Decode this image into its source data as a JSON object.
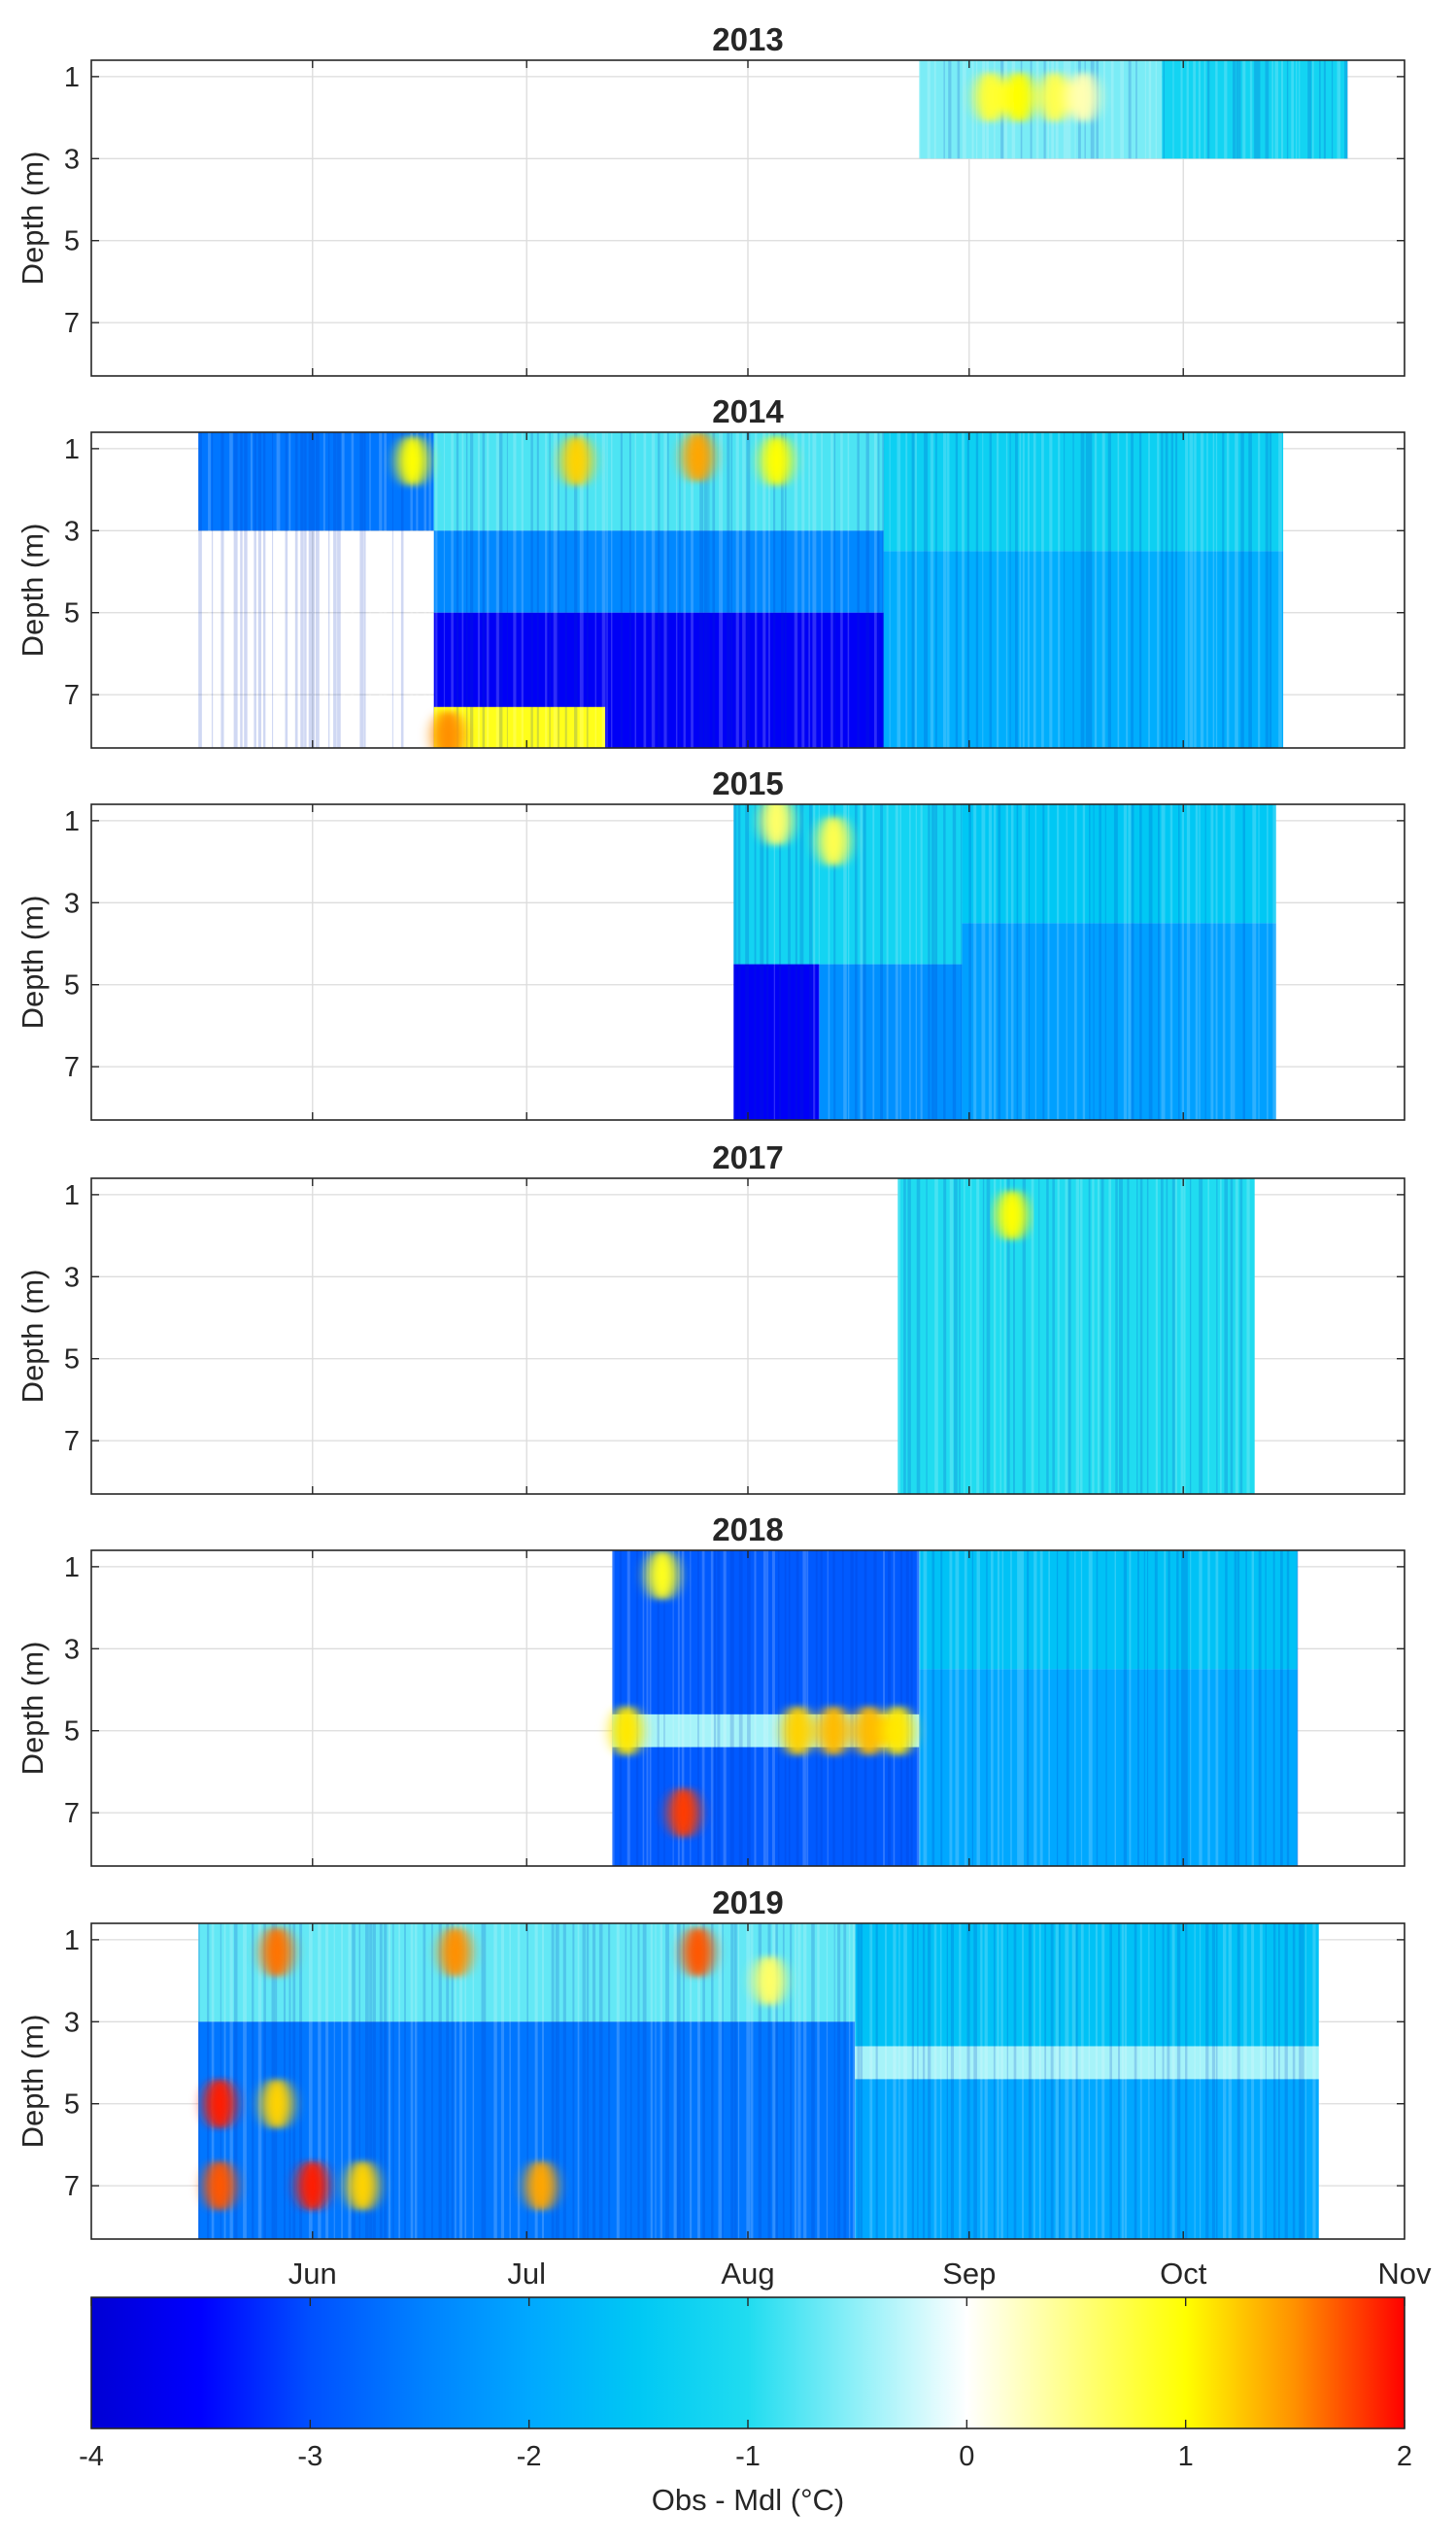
{
  "chart_data": {
    "type": "heatmap",
    "panel_titles": [
      "2013",
      "2014",
      "2015",
      "2017",
      "2018",
      "2019"
    ],
    "ylabel": "Depth (m)",
    "ylim": [
      8.3,
      0.6
    ],
    "yticks": [
      "1",
      "3",
      "5",
      "7"
    ],
    "xlim": [
      "2000-05-01",
      "2000-11-01"
    ],
    "xticks": [
      "Jun",
      "Jul",
      "Aug",
      "Sep",
      "Oct",
      "Nov"
    ],
    "grid": true,
    "colorbar": {
      "label": "Obs - Mdl (°C)",
      "range": [
        -4,
        2
      ],
      "ticks": [
        "-4",
        "-3",
        "-2",
        "-1",
        "0",
        "1",
        "2"
      ],
      "stops": [
        {
          "value": -4,
          "color": "#0000d4"
        },
        {
          "value": -3.5,
          "color": "#0000ff"
        },
        {
          "value": -3,
          "color": "#0050ff"
        },
        {
          "value": -2.5,
          "color": "#0080ff"
        },
        {
          "value": -2,
          "color": "#00a8ff"
        },
        {
          "value": -1.5,
          "color": "#00c8f4"
        },
        {
          "value": -1,
          "color": "#20dcf0"
        },
        {
          "value": -0.5,
          "color": "#90f0f8"
        },
        {
          "value": 0,
          "color": "#ffffff"
        },
        {
          "value": 0.5,
          "color": "#ffff80"
        },
        {
          "value": 1,
          "color": "#ffff00"
        },
        {
          "value": 1.5,
          "color": "#ff9000"
        },
        {
          "value": 2,
          "color": "#ff0000"
        }
      ]
    },
    "panels": [
      {
        "year": "2013",
        "start": "2000-08-25",
        "end": "2000-10-24",
        "depth_range": [
          0.6,
          3
        ],
        "regions": [
          {
            "from": "2000-08-25",
            "to": "2000-09-28",
            "d0": 0.6,
            "d1": 3,
            "value": -0.6
          },
          {
            "from": "2000-09-28",
            "to": "2000-10-24",
            "d0": 0.6,
            "d1": 3,
            "value": -1.2
          }
        ],
        "spots": [
          {
            "date": "2000-09-04",
            "depth": 1.5,
            "value": 0.8
          },
          {
            "date": "2000-09-08",
            "depth": 1.5,
            "value": 1.0
          },
          {
            "date": "2000-09-13",
            "depth": 1.5,
            "value": 0.7
          },
          {
            "date": "2000-09-17",
            "depth": 1.5,
            "value": 0.3
          }
        ]
      },
      {
        "year": "2014",
        "start": "2000-05-16",
        "end": "2000-10-15",
        "depth_range": [
          0.6,
          8.3
        ],
        "regions": [
          {
            "from": "2000-05-16",
            "to": "2000-06-18",
            "d0": 0.6,
            "d1": 3,
            "value": -2.6
          },
          {
            "from": "2000-06-18",
            "to": "2000-08-20",
            "d0": 0.6,
            "d1": 3,
            "value": -0.8
          },
          {
            "from": "2000-06-18",
            "to": "2000-08-20",
            "d0": 3,
            "d1": 5,
            "value": -2.4
          },
          {
            "from": "2000-06-18",
            "to": "2000-09-05",
            "d0": 5,
            "d1": 8.3,
            "value": -3.6
          },
          {
            "from": "2000-08-20",
            "to": "2000-10-15",
            "d0": 0.6,
            "d1": 3.5,
            "value": -1.3
          },
          {
            "from": "2000-08-20",
            "to": "2000-10-15",
            "d0": 3.5,
            "d1": 8.3,
            "value": -1.9
          },
          {
            "from": "2000-06-18",
            "to": "2000-07-12",
            "d0": 7.3,
            "d1": 8.3,
            "value": 0.9
          }
        ],
        "spots": [
          {
            "date": "2000-06-15",
            "depth": 1.3,
            "value": 1.0
          },
          {
            "date": "2000-07-08",
            "depth": 1.3,
            "value": 1.2
          },
          {
            "date": "2000-07-25",
            "depth": 1.2,
            "value": 1.4
          },
          {
            "date": "2000-08-05",
            "depth": 1.3,
            "value": 1.0
          },
          {
            "date": "2000-06-20",
            "depth": 8.0,
            "value": 1.5
          }
        ]
      },
      {
        "year": "2015",
        "start": "2000-07-30",
        "end": "2000-10-14",
        "depth_range": [
          0.6,
          8.3
        ],
        "regions": [
          {
            "from": "2000-07-30",
            "to": "2000-08-31",
            "d0": 0.6,
            "d1": 4.5,
            "value": -1.2
          },
          {
            "from": "2000-07-30",
            "to": "2000-08-11",
            "d0": 4.5,
            "d1": 8.3,
            "value": -3.6
          },
          {
            "from": "2000-08-11",
            "to": "2000-08-31",
            "d0": 4.5,
            "d1": 8.3,
            "value": -2.3
          },
          {
            "from": "2000-08-31",
            "to": "2000-10-14",
            "d0": 0.6,
            "d1": 3.5,
            "value": -1.5
          },
          {
            "from": "2000-08-31",
            "to": "2000-10-14",
            "d0": 3.5,
            "d1": 8.3,
            "value": -2.1
          }
        ],
        "spots": [
          {
            "date": "2000-08-05",
            "depth": 1.0,
            "value": 0.6
          },
          {
            "date": "2000-08-13",
            "depth": 1.5,
            "value": 0.7
          }
        ]
      },
      {
        "year": "2017",
        "start": "2000-08-22",
        "end": "2000-10-11",
        "depth_range": [
          0.6,
          8.3
        ],
        "regions": [
          {
            "from": "2000-08-22",
            "to": "2000-10-11",
            "d0": 0.6,
            "d1": 8.3,
            "value": -1.0
          }
        ],
        "spots": [
          {
            "date": "2000-09-07",
            "depth": 1.5,
            "value": 1.0
          }
        ]
      },
      {
        "year": "2018",
        "start": "2000-07-13",
        "end": "2000-10-17",
        "depth_range": [
          0.6,
          8.3
        ],
        "regions": [
          {
            "from": "2000-07-13",
            "to": "2000-08-25",
            "d0": 0.6,
            "d1": 8.3,
            "value": -2.9
          },
          {
            "from": "2000-08-25",
            "to": "2000-10-17",
            "d0": 0.6,
            "d1": 3.5,
            "value": -1.6
          },
          {
            "from": "2000-08-25",
            "to": "2000-10-17",
            "d0": 3.5,
            "d1": 8.3,
            "value": -2.0
          },
          {
            "from": "2000-07-13",
            "to": "2000-08-25",
            "d0": 4.6,
            "d1": 5.4,
            "value": -0.4
          }
        ],
        "spots": [
          {
            "date": "2000-07-15",
            "depth": 5.0,
            "value": 1.1
          },
          {
            "date": "2000-08-08",
            "depth": 5.0,
            "value": 1.2
          },
          {
            "date": "2000-08-13",
            "depth": 5.0,
            "value": 1.3
          },
          {
            "date": "2000-08-18",
            "depth": 5.0,
            "value": 1.3
          },
          {
            "date": "2000-08-22",
            "depth": 5.0,
            "value": 1.1
          },
          {
            "date": "2000-07-23",
            "depth": 7.0,
            "value": 1.8
          },
          {
            "date": "2000-07-20",
            "depth": 1.2,
            "value": 0.9
          }
        ]
      },
      {
        "year": "2019",
        "start": "2000-05-16",
        "end": "2000-10-20",
        "depth_range": [
          0.6,
          8.3
        ],
        "regions": [
          {
            "from": "2000-05-16",
            "to": "2000-08-16",
            "d0": 0.6,
            "d1": 3,
            "value": -0.7
          },
          {
            "from": "2000-05-16",
            "to": "2000-08-16",
            "d0": 3,
            "d1": 8.3,
            "value": -2.6
          },
          {
            "from": "2000-08-16",
            "to": "2000-10-20",
            "d0": 0.6,
            "d1": 3.6,
            "value": -1.6
          },
          {
            "from": "2000-08-16",
            "to": "2000-10-20",
            "d0": 3.6,
            "d1": 4.4,
            "value": -0.4
          },
          {
            "from": "2000-08-16",
            "to": "2000-10-20",
            "d0": 4.4,
            "d1": 8.3,
            "value": -2.0
          }
        ],
        "spots": [
          {
            "date": "2000-05-19",
            "depth": 5.0,
            "value": 1.9
          },
          {
            "date": "2000-05-27",
            "depth": 5.0,
            "value": 1.2
          },
          {
            "date": "2000-05-19",
            "depth": 7.0,
            "value": 1.7
          },
          {
            "date": "2000-06-01",
            "depth": 7.0,
            "value": 1.9
          },
          {
            "date": "2000-06-08",
            "depth": 7.0,
            "value": 1.2
          },
          {
            "date": "2000-05-27",
            "depth": 1.3,
            "value": 1.6
          },
          {
            "date": "2000-06-21",
            "depth": 1.3,
            "value": 1.5
          },
          {
            "date": "2000-07-25",
            "depth": 1.3,
            "value": 1.7
          },
          {
            "date": "2000-07-03",
            "depth": 7.0,
            "value": 1.4
          },
          {
            "date": "2000-08-04",
            "depth": 2.0,
            "value": 0.6
          }
        ]
      }
    ]
  }
}
